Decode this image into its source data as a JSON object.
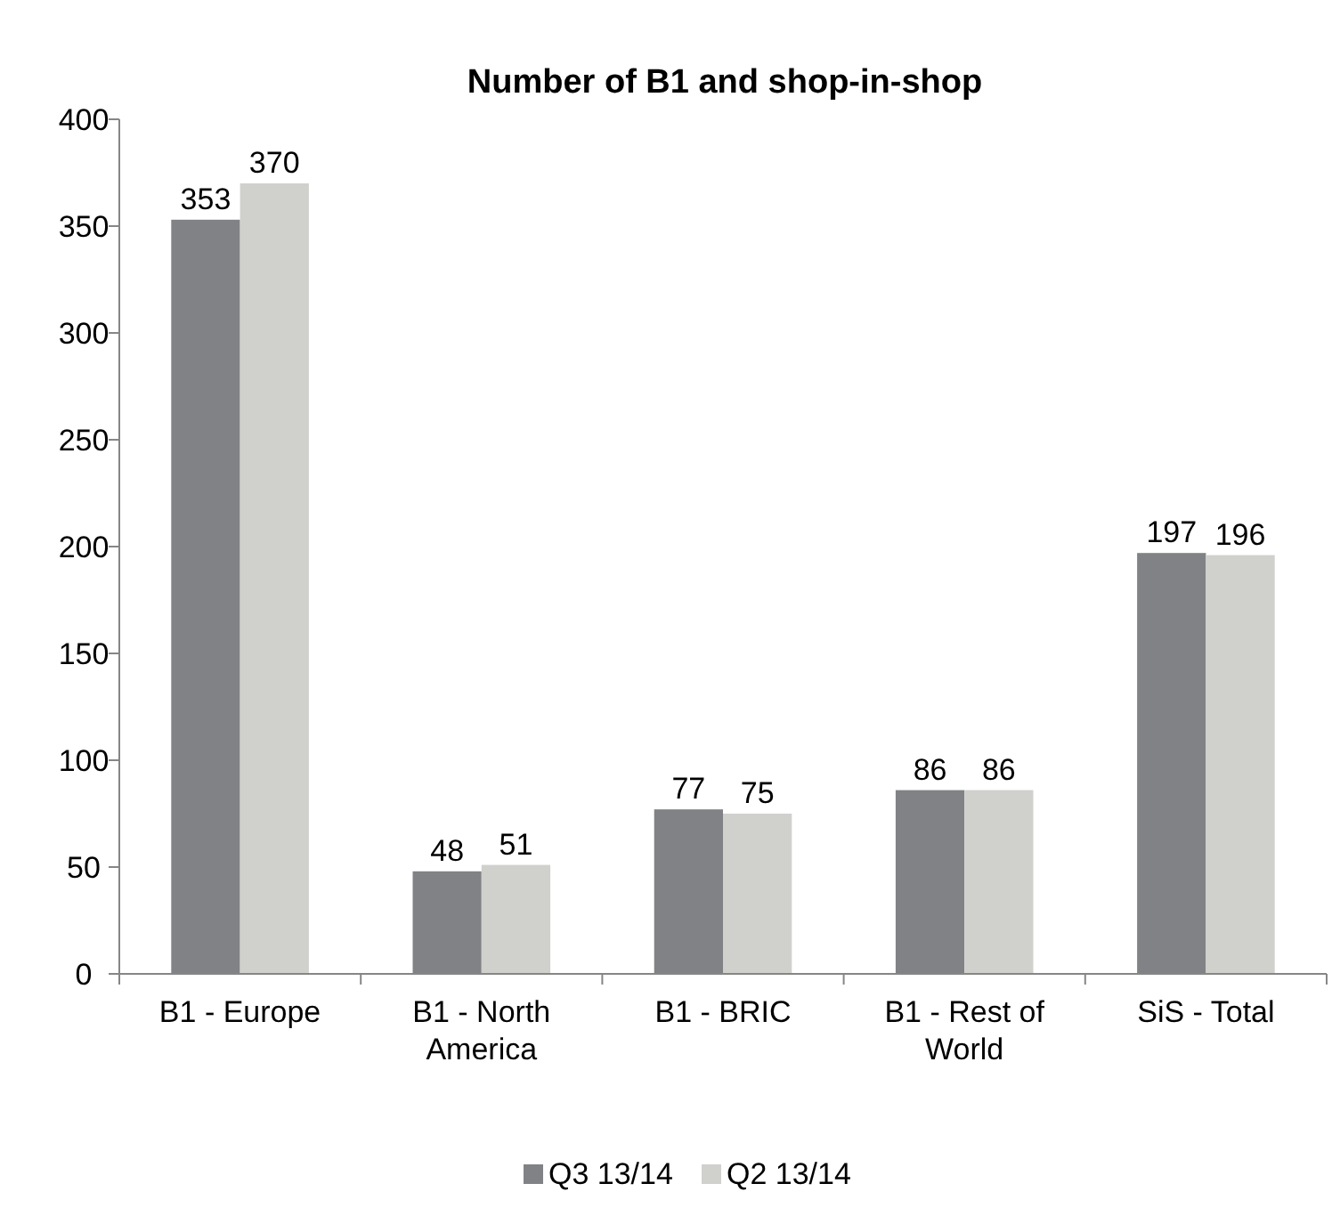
{
  "chart_data": {
    "type": "bar",
    "title": "Number of B1 and shop-in-shop",
    "categories": [
      "B1 - Europe",
      "B1 - North America",
      "B1 - BRIC",
      "B1 - Rest of World",
      "SiS - Total"
    ],
    "series": [
      {
        "name": "Q3 13/14",
        "color": "#808285",
        "values": [
          353,
          48,
          77,
          86,
          197
        ]
      },
      {
        "name": "Q2 13/14",
        "color": "#d0d0cc",
        "values": [
          370,
          51,
          75,
          86,
          196
        ]
      }
    ],
    "ylim": [
      0,
      400
    ],
    "yticks": [
      0,
      50,
      100,
      150,
      200,
      250,
      300,
      350,
      400
    ],
    "grid": false,
    "legend": "bottom",
    "data_labels": true
  }
}
